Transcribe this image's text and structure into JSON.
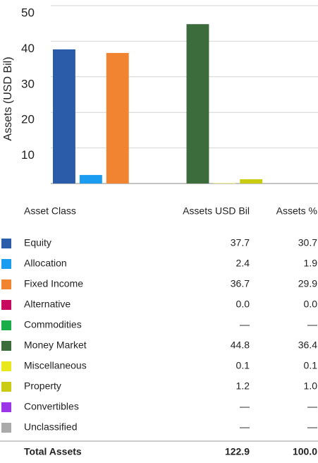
{
  "chart_data": {
    "type": "bar",
    "ylabel": "Assets (USD Bil)",
    "categories": [
      "Equity",
      "Allocation",
      "Fixed Income",
      "Alternative",
      "Commodities",
      "Money Market",
      "Miscellaneous",
      "Property",
      "Convertibles",
      "Unclassified"
    ],
    "values": [
      37.7,
      2.4,
      36.7,
      0.0,
      null,
      44.8,
      0.1,
      1.2,
      null,
      null
    ],
    "value_labels": [
      "37.7",
      "2.4",
      "36.7",
      "0.0",
      "—",
      "44.8",
      "0.1",
      "1.2",
      "—",
      "—"
    ],
    "colors": [
      "#2a5caa",
      "#1a9cf0",
      "#f08431",
      "#c8085f",
      "#1aae4a",
      "#3c6b3c",
      "#e9e81c",
      "#c9cc10",
      "#9b36e8",
      "#aaaaaa"
    ],
    "ylim": [
      0,
      50
    ],
    "yticks": [
      10,
      20,
      30,
      40,
      50
    ],
    "grid": true
  },
  "table": {
    "header": [
      "Asset Class",
      "Assets USD Bil",
      "Assets %"
    ],
    "pct": [
      "30.7",
      "1.9",
      "29.9",
      "0.0",
      "—",
      "36.4",
      "0.1",
      "1.0",
      "—",
      "—"
    ],
    "total": [
      "Total Assets",
      "122.9",
      "100.0"
    ]
  }
}
